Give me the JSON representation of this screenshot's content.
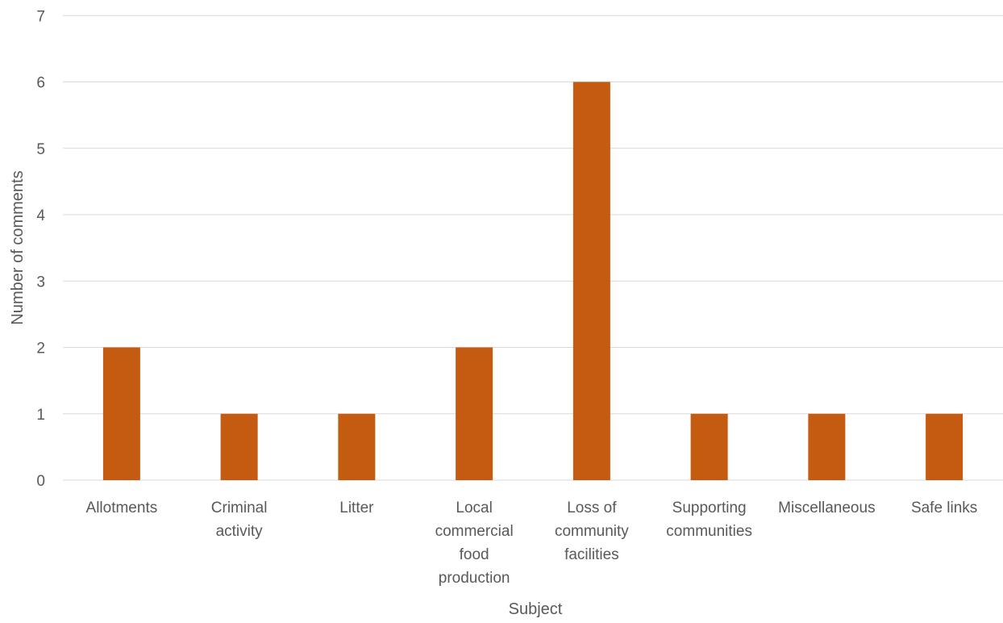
{
  "chart_data": {
    "type": "bar",
    "title": "",
    "xlabel": "Subject",
    "ylabel": "Number of comments",
    "categories": [
      [
        "Allotments"
      ],
      [
        "Criminal",
        "activity"
      ],
      [
        "Litter"
      ],
      [
        "Local",
        "commercial",
        "food",
        "production"
      ],
      [
        "Loss of",
        "community",
        "facilities"
      ],
      [
        "Supporting",
        "communities"
      ],
      [
        "Miscellaneous"
      ],
      [
        "Safe links"
      ]
    ],
    "values": [
      2,
      1,
      1,
      2,
      6,
      1,
      1,
      1
    ],
    "ylim": [
      0,
      7
    ],
    "yticks": [
      "0",
      "1",
      "2",
      "3",
      "4",
      "5",
      "6",
      "7"
    ],
    "grid": true,
    "legend": "none",
    "bar_color": "#C55A11",
    "grid_color": "#D9D9D9",
    "text_color": "#595959"
  }
}
